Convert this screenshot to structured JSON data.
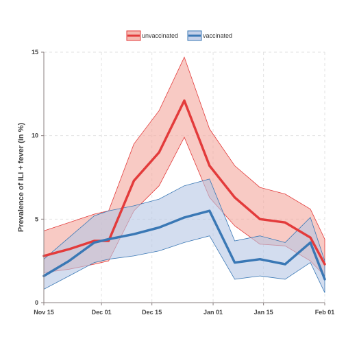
{
  "chart_data": {
    "type": "line",
    "title": "",
    "xlabel": "",
    "ylabel": "Prevalence of ILI + fever (in %)",
    "x_ticks": [
      "Nov 15",
      "Dec 01",
      "Dec 15",
      "Jan 01",
      "Jan 15",
      "Feb 01"
    ],
    "y_ticks": [
      "0",
      "5",
      "10",
      "15"
    ],
    "xlim": [
      "2016-11-15",
      "2017-02-01"
    ],
    "ylim": [
      0,
      15
    ],
    "grid": true,
    "legend_position": "top-center",
    "series": [
      {
        "name": "unvaccinated",
        "color": "#e33b3b",
        "fill": "#f3a79c",
        "x": [
          "2016-11-15",
          "2016-11-22",
          "2016-11-29",
          "2016-12-03",
          "2016-12-10",
          "2016-12-17",
          "2016-12-24",
          "2016-12-31",
          "2017-01-07",
          "2017-01-14",
          "2017-01-21",
          "2017-01-28",
          "2017-02-01"
        ],
        "values": [
          2.8,
          3.2,
          3.7,
          3.7,
          7.3,
          9.0,
          12.1,
          8.2,
          6.3,
          5.0,
          4.8,
          3.9,
          2.3
        ],
        "upper": [
          4.3,
          4.8,
          5.3,
          5.5,
          9.5,
          11.5,
          14.7,
          10.4,
          8.2,
          6.9,
          6.5,
          5.6,
          3.8
        ],
        "lower": [
          1.8,
          2.0,
          2.3,
          2.5,
          5.5,
          7.0,
          9.9,
          6.3,
          4.6,
          3.5,
          3.4,
          2.5,
          1.6
        ]
      },
      {
        "name": "vaccinated",
        "color": "#3a78b5",
        "fill": "#b6c6e4",
        "x": [
          "2016-11-15",
          "2016-11-22",
          "2016-11-29",
          "2016-12-03",
          "2016-12-10",
          "2016-12-17",
          "2016-12-24",
          "2016-12-31",
          "2017-01-07",
          "2017-01-14",
          "2017-01-21",
          "2017-01-28",
          "2017-02-01"
        ],
        "values": [
          1.6,
          2.5,
          3.6,
          3.8,
          4.1,
          4.5,
          5.1,
          5.5,
          2.4,
          2.6,
          2.3,
          3.6,
          1.4
        ],
        "upper": [
          2.6,
          3.9,
          5.2,
          5.5,
          5.8,
          6.2,
          7.0,
          7.4,
          3.7,
          4.0,
          3.6,
          5.1,
          2.5
        ],
        "lower": [
          0.8,
          1.6,
          2.4,
          2.6,
          2.8,
          3.1,
          3.6,
          4.0,
          1.4,
          1.6,
          1.4,
          2.4,
          0.6
        ]
      }
    ]
  }
}
